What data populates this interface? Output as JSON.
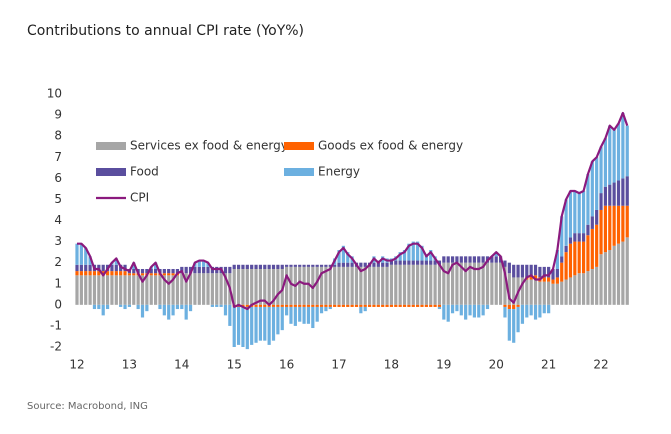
{
  "chart_data": {
    "type": "bar",
    "stacked": true,
    "title": "Contributions to annual CPI rate (YoY%)",
    "source": "Source: Macrobond, ING",
    "ylim": [
      -2,
      10
    ],
    "yticks": [
      -2,
      -1,
      0,
      1,
      2,
      3,
      4,
      5,
      6,
      7,
      8,
      9,
      10
    ],
    "categories": [
      "12",
      null,
      null,
      null,
      null,
      null,
      null,
      null,
      null,
      null,
      null,
      null,
      "13",
      null,
      null,
      null,
      null,
      null,
      null,
      null,
      null,
      null,
      null,
      null,
      "14",
      null,
      null,
      null,
      null,
      null,
      null,
      null,
      null,
      null,
      null,
      null,
      "15",
      null,
      null,
      null,
      null,
      null,
      null,
      null,
      null,
      null,
      null,
      null,
      "16",
      null,
      null,
      null,
      null,
      null,
      null,
      null,
      null,
      null,
      null,
      null,
      "17",
      null,
      null,
      null,
      null,
      null,
      null,
      null,
      null,
      null,
      null,
      null,
      "18",
      null,
      null,
      null,
      null,
      null,
      null,
      null,
      null,
      null,
      null,
      null,
      "19",
      null,
      null,
      null,
      null,
      null,
      null,
      null,
      null,
      null,
      null,
      null,
      "20",
      null,
      null,
      null,
      null,
      null,
      null,
      null,
      null,
      null,
      null,
      null,
      "21",
      null,
      null,
      null,
      null,
      null,
      null,
      null,
      null,
      null,
      null,
      null,
      "22",
      null,
      null,
      null,
      null,
      null,
      null
    ],
    "series": [
      {
        "name": "Services ex food & energy",
        "color": "#a6a6a6",
        "values": [
          1.4,
          1.4,
          1.4,
          1.4,
          1.4,
          1.4,
          1.4,
          1.4,
          1.4,
          1.4,
          1.4,
          1.4,
          1.4,
          1.4,
          1.4,
          1.4,
          1.4,
          1.4,
          1.4,
          1.4,
          1.4,
          1.4,
          1.4,
          1.4,
          1.5,
          1.5,
          1.5,
          1.5,
          1.5,
          1.5,
          1.5,
          1.5,
          1.5,
          1.5,
          1.5,
          1.5,
          1.7,
          1.7,
          1.7,
          1.7,
          1.7,
          1.7,
          1.7,
          1.7,
          1.7,
          1.7,
          1.7,
          1.7,
          1.8,
          1.8,
          1.8,
          1.8,
          1.8,
          1.8,
          1.8,
          1.8,
          1.8,
          1.8,
          1.8,
          1.8,
          1.8,
          1.8,
          1.8,
          1.8,
          1.8,
          1.8,
          1.8,
          1.8,
          1.8,
          1.8,
          1.8,
          1.8,
          1.9,
          1.9,
          1.9,
          1.9,
          1.9,
          1.9,
          1.9,
          1.9,
          1.9,
          1.9,
          1.9,
          1.9,
          2.0,
          2.0,
          2.0,
          2.0,
          2.0,
          2.0,
          2.0,
          2.0,
          2.0,
          2.0,
          2.0,
          2.0,
          2.0,
          2.0,
          1.8,
          1.5,
          1.3,
          1.3,
          1.3,
          1.2,
          1.2,
          1.2,
          1.1,
          1.1,
          1.1,
          1.0,
          1.0,
          1.1,
          1.2,
          1.3,
          1.4,
          1.5,
          1.5,
          1.6,
          1.7,
          1.8,
          2.4,
          2.5,
          2.6,
          2.8,
          2.9,
          3.0,
          3.2
        ]
      },
      {
        "name": "Goods ex food & energy",
        "color": "#ff6200",
        "values": [
          0.2,
          0.2,
          0.2,
          0.2,
          0.2,
          0.2,
          0.2,
          0.2,
          0.2,
          0.2,
          0.2,
          0.2,
          0.1,
          0.1,
          0.1,
          0.1,
          0.1,
          0.1,
          0.1,
          0.1,
          0.1,
          0.1,
          0.1,
          0.1,
          0,
          0,
          0,
          0,
          0,
          0,
          0,
          0,
          0,
          0,
          0,
          0,
          -0.1,
          -0.1,
          -0.1,
          -0.1,
          -0.1,
          -0.1,
          -0.1,
          -0.1,
          -0.1,
          -0.1,
          -0.1,
          -0.1,
          -0.1,
          -0.1,
          -0.1,
          -0.1,
          -0.1,
          -0.1,
          -0.1,
          -0.1,
          -0.1,
          -0.1,
          -0.1,
          -0.1,
          -0.1,
          -0.1,
          -0.1,
          -0.1,
          -0.1,
          -0.1,
          -0.1,
          -0.1,
          -0.1,
          -0.1,
          -0.1,
          -0.1,
          -0.1,
          -0.1,
          -0.1,
          -0.1,
          -0.1,
          -0.1,
          -0.1,
          -0.1,
          -0.1,
          -0.1,
          -0.1,
          -0.1,
          0,
          0,
          0,
          0,
          0,
          0,
          0,
          0,
          0,
          0,
          0,
          0,
          0,
          0,
          -0.1,
          -0.2,
          -0.2,
          -0.1,
          0,
          0.1,
          0.2,
          0.2,
          0.2,
          0.2,
          0.2,
          0.2,
          0.3,
          0.9,
          1.3,
          1.6,
          1.6,
          1.5,
          1.5,
          1.7,
          1.9,
          2.0,
          2.1,
          2.2,
          2.1,
          1.9,
          1.8,
          1.7,
          1.5
        ]
      },
      {
        "name": "Food",
        "color": "#5a4e9e",
        "values": [
          0.3,
          0.3,
          0.3,
          0.3,
          0.3,
          0.3,
          0.3,
          0.3,
          0.3,
          0.3,
          0.3,
          0.3,
          0.2,
          0.2,
          0.2,
          0.2,
          0.2,
          0.2,
          0.2,
          0.2,
          0.2,
          0.2,
          0.2,
          0.2,
          0.3,
          0.3,
          0.3,
          0.3,
          0.3,
          0.3,
          0.3,
          0.3,
          0.3,
          0.3,
          0.3,
          0.3,
          0.2,
          0.2,
          0.2,
          0.2,
          0.2,
          0.2,
          0.2,
          0.2,
          0.2,
          0.2,
          0.2,
          0.2,
          0.1,
          0.1,
          0.1,
          0.1,
          0.1,
          0.1,
          0.1,
          0.1,
          0.1,
          0.1,
          0.1,
          0.1,
          0.2,
          0.2,
          0.2,
          0.2,
          0.2,
          0.2,
          0.2,
          0.2,
          0.2,
          0.2,
          0.2,
          0.2,
          0.2,
          0.2,
          0.2,
          0.2,
          0.2,
          0.2,
          0.2,
          0.2,
          0.2,
          0.2,
          0.2,
          0.2,
          0.3,
          0.3,
          0.3,
          0.3,
          0.3,
          0.3,
          0.3,
          0.3,
          0.3,
          0.3,
          0.3,
          0.3,
          0.3,
          0.3,
          0.3,
          0.5,
          0.6,
          0.6,
          0.6,
          0.6,
          0.5,
          0.5,
          0.5,
          0.5,
          0.5,
          0.5,
          0.4,
          0.3,
          0.3,
          0.3,
          0.4,
          0.4,
          0.4,
          0.5,
          0.6,
          0.7,
          0.8,
          0.9,
          1.0,
          1.1,
          1.2,
          1.3,
          1.4
        ]
      },
      {
        "name": "Energy",
        "color": "#6cb0e0",
        "values": [
          1.0,
          1.0,
          0.8,
          0.4,
          -0.2,
          -0.2,
          -0.5,
          -0.2,
          0.1,
          0.3,
          -0.1,
          -0.2,
          -0.1,
          0.3,
          -0.2,
          -0.6,
          -0.3,
          0.1,
          0.3,
          -0.2,
          -0.5,
          -0.7,
          -0.5,
          -0.2,
          -0.2,
          -0.7,
          -0.3,
          0.2,
          0.3,
          0.3,
          0.2,
          -0.1,
          -0.1,
          -0.1,
          -0.5,
          -1.0,
          -1.9,
          -1.8,
          -1.9,
          -2.0,
          -1.8,
          -1.7,
          -1.6,
          -1.6,
          -1.8,
          -1.6,
          -1.3,
          -1.1,
          -0.4,
          -0.8,
          -0.9,
          -0.7,
          -0.8,
          -0.8,
          -1.0,
          -0.7,
          -0.3,
          -0.2,
          -0.1,
          0.3,
          0.6,
          0.8,
          0.5,
          0.3,
          0,
          -0.3,
          -0.2,
          0,
          0.3,
          0.1,
          0.3,
          0.2,
          0.1,
          0.2,
          0.4,
          0.5,
          0.8,
          0.9,
          0.9,
          0.7,
          0.3,
          0.5,
          0.2,
          -0.1,
          -0.7,
          -0.8,
          -0.4,
          -0.3,
          -0.5,
          -0.7,
          -0.5,
          -0.6,
          -0.6,
          -0.5,
          -0.2,
          0,
          0.2,
          0,
          -0.5,
          -1.5,
          -1.6,
          -1.2,
          -0.9,
          -0.6,
          -0.5,
          -0.7,
          -0.6,
          -0.4,
          -0.4,
          0,
          0.9,
          1.9,
          2.2,
          2.2,
          2.0,
          1.9,
          2.0,
          2.4,
          2.6,
          2.5,
          2.2,
          2.3,
          2.8,
          2.5,
          2.7,
          3.1,
          2.4
        ]
      },
      {
        "name": "CPI",
        "color": "#8b1a7e",
        "type": "line",
        "values": [
          2.9,
          2.9,
          2.7,
          2.3,
          1.7,
          1.7,
          1.4,
          1.7,
          2.0,
          2.2,
          1.8,
          1.7,
          1.6,
          2.0,
          1.5,
          1.1,
          1.4,
          1.8,
          2.0,
          1.5,
          1.2,
          1.0,
          1.2,
          1.5,
          1.6,
          1.1,
          1.5,
          2.0,
          2.1,
          2.1,
          2.0,
          1.7,
          1.7,
          1.7,
          1.3,
          0.8,
          -0.1,
          0,
          -0.1,
          -0.2,
          0,
          0.1,
          0.2,
          0.2,
          0,
          0.2,
          0.5,
          0.7,
          1.4,
          1.0,
          0.9,
          1.1,
          1.0,
          1.0,
          0.8,
          1.1,
          1.5,
          1.6,
          1.7,
          2.1,
          2.5,
          2.7,
          2.4,
          2.2,
          1.9,
          1.6,
          1.7,
          1.9,
          2.2,
          2.0,
          2.2,
          2.1,
          2.1,
          2.2,
          2.4,
          2.5,
          2.8,
          2.9,
          2.9,
          2.7,
          2.3,
          2.5,
          2.2,
          1.9,
          1.6,
          1.5,
          1.9,
          2.0,
          1.8,
          1.6,
          1.8,
          1.7,
          1.7,
          1.8,
          2.1,
          2.3,
          2.5,
          2.3,
          1.5,
          0.3,
          0.1,
          0.6,
          1.0,
          1.3,
          1.4,
          1.2,
          1.2,
          1.4,
          1.4,
          1.7,
          2.6,
          4.2,
          5.0,
          5.4,
          5.4,
          5.3,
          5.4,
          6.2,
          6.8,
          7.0,
          7.5,
          7.9,
          8.5,
          8.3,
          8.6,
          9.1,
          8.5
        ]
      }
    ]
  }
}
